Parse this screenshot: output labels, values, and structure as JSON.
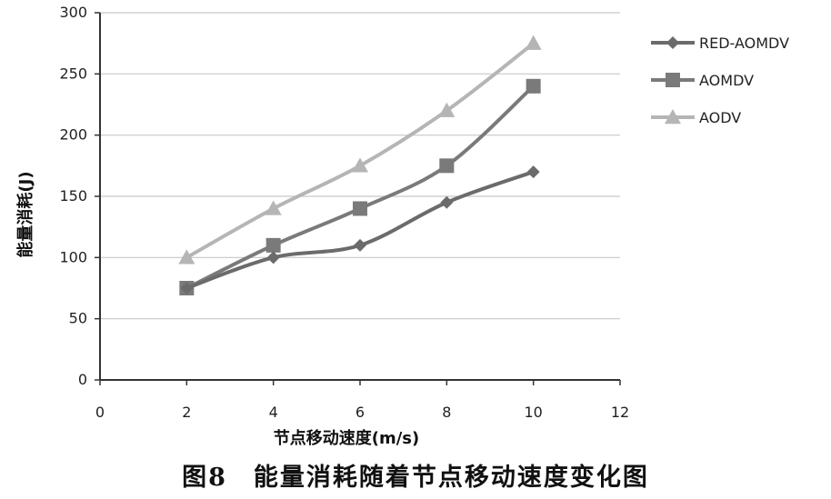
{
  "chart_data": {
    "type": "line",
    "xlabel": "节点移动速度(m/s)",
    "ylabel": "能量消耗(J)",
    "xlim": [
      0,
      12
    ],
    "ylim": [
      0,
      300
    ],
    "x_ticks": [
      0,
      2,
      4,
      6,
      8,
      10,
      12
    ],
    "y_ticks": [
      0,
      50,
      100,
      150,
      200,
      250,
      300
    ],
    "grid": "horizontal",
    "legend_position": "right",
    "x": [
      2,
      4,
      6,
      8,
      10
    ],
    "series": [
      {
        "name": "RED-AOMDV",
        "values": [
          75,
          100,
          110,
          145,
          170
        ],
        "color": "#6b6b6b",
        "marker": "diamond"
      },
      {
        "name": "AOMDV",
        "values": [
          75,
          110,
          140,
          175,
          240
        ],
        "color": "#7a7a7a",
        "marker": "square"
      },
      {
        "name": "AODV",
        "values": [
          100,
          140,
          175,
          220,
          275
        ],
        "color": "#b5b5b5",
        "marker": "triangle"
      }
    ]
  },
  "caption": "图8　能量消耗随着节点移动速度变化图"
}
